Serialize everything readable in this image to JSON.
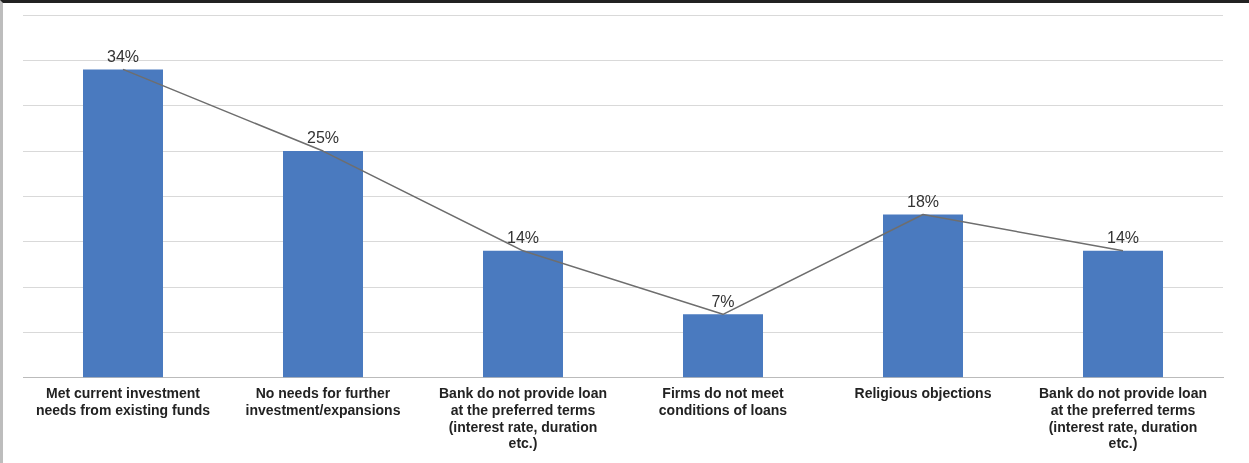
{
  "chart_data": {
    "type": "bar",
    "categories": [
      "Met current investment needs from existing funds",
      "No needs for further investment/expansions",
      "Bank do not provide loan at the preferred terms (interest rate, duration etc.)",
      "Firms do not meet conditions of loans",
      "Religious objections",
      "Bank do not provide loan at the preferred terms (interest rate, duration etc.)"
    ],
    "series": [
      {
        "color": "#4a7abf",
        "values": [
          34,
          25,
          14,
          7,
          18,
          14
        ],
        "value_labels": [
          "34%",
          "25%",
          "14%",
          "7%",
          "18%",
          "14%"
        ]
      },
      {
        "type": "line",
        "color": "#6e6e6e",
        "values": [
          34,
          25,
          14,
          7,
          18,
          14
        ]
      }
    ],
    "grid": "y",
    "tick_labels": "x",
    "marker": "none",
    "legend": false
  }
}
